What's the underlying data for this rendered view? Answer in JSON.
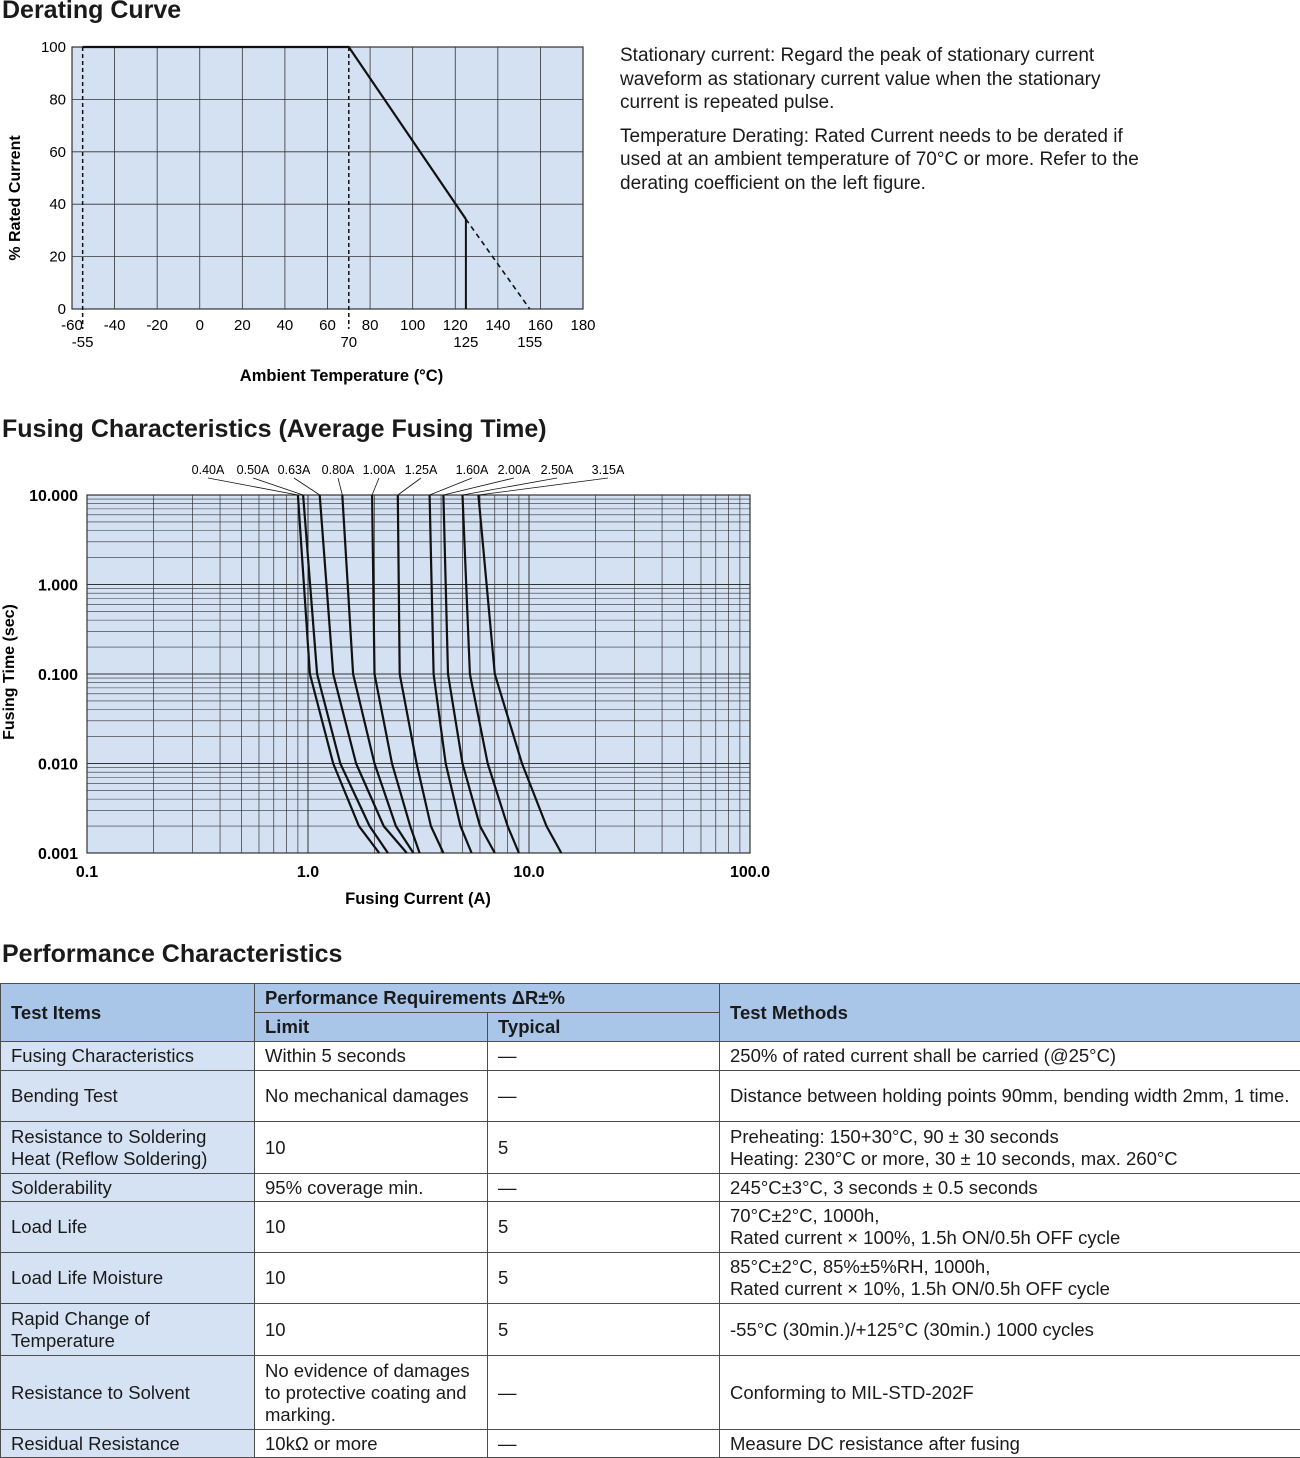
{
  "derating": {
    "title": "Derating Curve",
    "notes": [
      "Stationary current: Regard the peak of stationary current waveform as stationary current value when the stationary current is repeated pulse.",
      "Temperature Derating: Rated Current needs to be derated if used at an ambient temperature of 70°C or more. Refer to the derating coefficient on the left figure."
    ]
  },
  "fusing": {
    "title": "Fusing Characteristics (Average Fusing Time)"
  },
  "performance": {
    "title": "Performance Characteristics",
    "headers": {
      "test_items": "Test Items",
      "requirements": "Performance Requirements ΔR±%",
      "limit": "Limit",
      "typical": "Typical",
      "methods": "Test Methods"
    },
    "rows": [
      {
        "item": "Fusing Characteristics",
        "limit": "Within 5 seconds",
        "typical": "—",
        "method": "250% of rated current shall be carried (@25°C)"
      },
      {
        "item": "Bending Test",
        "limit": "No mechanical damages",
        "typical": "—",
        "method": "Distance between holding points 90mm, bending width 2mm, 1 time."
      },
      {
        "item": "Resistance to Soldering Heat (Reflow Soldering)",
        "limit": "10",
        "typical": "5",
        "method": "Preheating: 150+30°C, 90 ± 30 seconds\nHeating: 230°C or more, 30 ± 10 seconds, max. 260°C"
      },
      {
        "item": "Solderability",
        "limit": "95% coverage min.",
        "typical": "—",
        "method": "245°C±3°C, 3 seconds ± 0.5 seconds"
      },
      {
        "item": "Load Life",
        "limit": "10",
        "typical": "5",
        "method": "70°C±2°C, 1000h,\nRated current × 100%,  1.5h ON/0.5h OFF cycle"
      },
      {
        "item": "Load Life Moisture",
        "limit": "10",
        "typical": "5",
        "method": "85°C±2°C, 85%±5%RH, 1000h,\nRated current × 10%,  1.5h ON/0.5h OFF cycle"
      },
      {
        "item": "Rapid Change of Temperature",
        "limit": "10",
        "typical": "5",
        "method": "-55°C (30min.)/+125°C (30min.) 1000 cycles"
      },
      {
        "item": "Resistance to Solvent",
        "limit": "No evidence of damages to protective coating and marking.",
        "typical": "—",
        "method": "Conforming to MIL-STD-202F"
      },
      {
        "item": "Residual Resistance",
        "limit": "10kΩ or more",
        "typical": "—",
        "method": "Measure DC resistance after fusing"
      }
    ]
  },
  "chart_data": [
    {
      "type": "line",
      "xlabel": "Ambient Temperature (°C)",
      "ylabel": "% Rated Current",
      "xlim": [
        -60,
        180
      ],
      "ylim": [
        0,
        100
      ],
      "xticks": [
        "-60",
        "-40",
        "-20",
        "0",
        "20",
        "40",
        "60",
        "80",
        "100",
        "120",
        "140",
        "160",
        "180"
      ],
      "yticks": [
        "0",
        "20",
        "40",
        "60",
        "80",
        "100"
      ],
      "extra_xlabels": [
        "-55",
        "70",
        "125",
        "155"
      ],
      "grid": true,
      "series": [
        {
          "style": "solid",
          "x": [
            -55,
            70,
            125
          ],
          "y": [
            100,
            100,
            34.3
          ]
        },
        {
          "style": "dashed",
          "x": [
            125,
            155
          ],
          "y": [
            34.3,
            0
          ]
        }
      ],
      "reference_lines": [
        {
          "x": -55,
          "style": "dashed"
        },
        {
          "x": 70,
          "style": "dashed"
        },
        {
          "x": 125,
          "style": "solid"
        }
      ]
    },
    {
      "type": "line",
      "xlabel": "Fusing Current (A)",
      "ylabel": "Fusing Time (sec)",
      "xscale": "log",
      "yscale": "log",
      "xlim": [
        0.1,
        100
      ],
      "ylim": [
        0.001,
        10
      ],
      "xticks": [
        "0.1",
        "1.0",
        "10.0",
        "100.0"
      ],
      "yticks": [
        "10.000",
        "1.000",
        "0.100",
        "0.010",
        "0.001"
      ],
      "grid": true,
      "series": [
        {
          "name": "0.40A",
          "x": [
            0.9,
            1.02,
            1.3,
            1.7,
            2.1
          ],
          "y": [
            10,
            0.1,
            0.01,
            0.002,
            0.001
          ]
        },
        {
          "name": "0.50A",
          "x": [
            0.95,
            1.1,
            1.4,
            1.9,
            2.3
          ],
          "y": [
            10,
            0.1,
            0.01,
            0.002,
            0.001
          ]
        },
        {
          "name": "0.63A",
          "x": [
            1.13,
            1.3,
            1.65,
            2.2,
            2.8
          ],
          "y": [
            10,
            0.1,
            0.01,
            0.002,
            0.001
          ]
        },
        {
          "name": "0.80A",
          "x": [
            1.43,
            1.6,
            2.0,
            2.5,
            3.0
          ],
          "y": [
            10,
            0.1,
            0.01,
            0.002,
            0.001
          ]
        },
        {
          "name": "1.00A",
          "x": [
            1.95,
            2.0,
            2.4,
            2.9,
            3.2
          ],
          "y": [
            10,
            0.1,
            0.01,
            0.002,
            0.001
          ]
        },
        {
          "name": "1.25A",
          "x": [
            2.55,
            2.6,
            3.1,
            3.6,
            4.1
          ],
          "y": [
            10,
            0.1,
            0.01,
            0.002,
            0.001
          ]
        },
        {
          "name": "1.60A",
          "x": [
            3.55,
            3.7,
            4.2,
            4.9,
            5.5
          ],
          "y": [
            10,
            0.1,
            0.01,
            0.002,
            0.001
          ]
        },
        {
          "name": "2.00A",
          "x": [
            4.1,
            4.3,
            5.0,
            6.0,
            7.0
          ],
          "y": [
            10,
            0.1,
            0.01,
            0.002,
            0.001
          ]
        },
        {
          "name": "2.50A",
          "x": [
            5.0,
            5.4,
            6.5,
            8.0,
            9.0
          ],
          "y": [
            10,
            0.1,
            0.01,
            0.002,
            0.001
          ]
        },
        {
          "name": "3.15A",
          "x": [
            5.9,
            7.0,
            9.3,
            12.0,
            14.0
          ],
          "y": [
            10,
            0.1,
            0.01,
            0.002,
            0.001
          ]
        }
      ]
    }
  ]
}
